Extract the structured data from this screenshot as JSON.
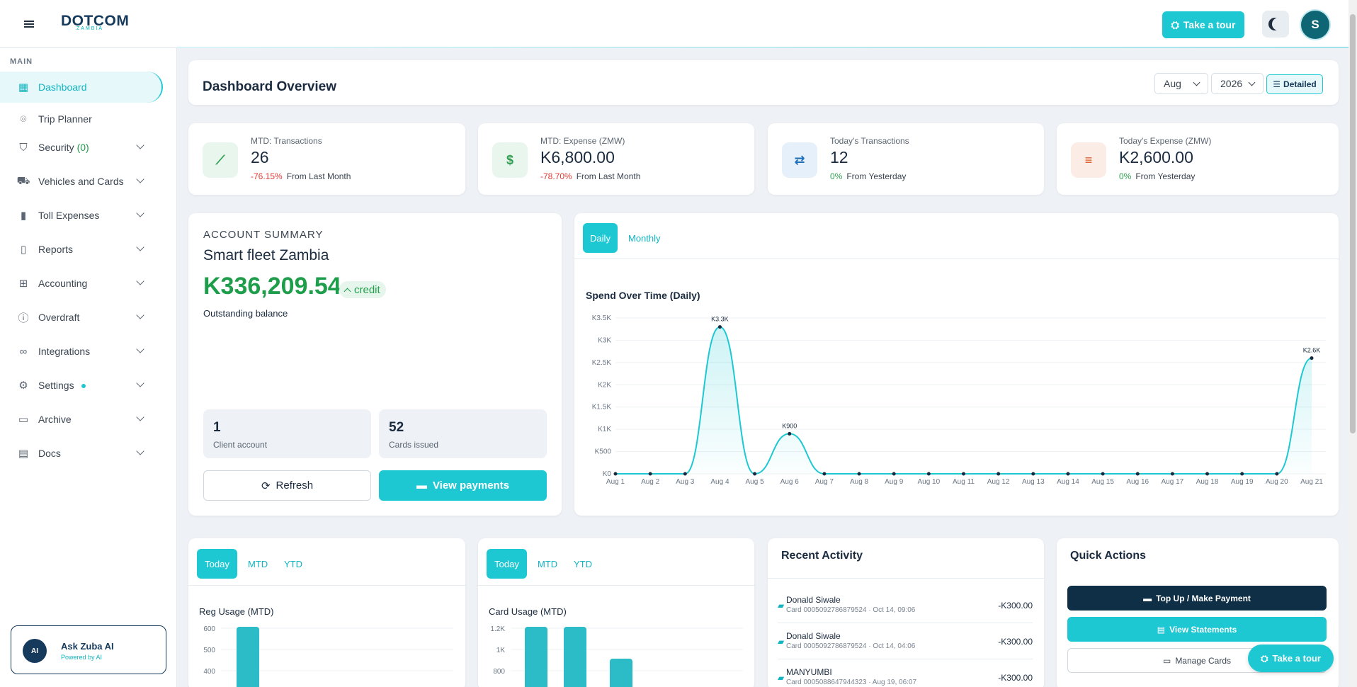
{
  "brand": {
    "name": "DOTCOM",
    "sub": "ZAMBIA"
  },
  "header": {
    "tour_label": "Take a tour",
    "avatar_initial": "S"
  },
  "sidebar": {
    "section": "MAIN",
    "items": [
      {
        "label": "Dashboard",
        "icon": "dashboard-icon",
        "active": true
      },
      {
        "label": "Trip Planner",
        "icon": "map-pin-icon"
      },
      {
        "label": "Security",
        "badge": "(0)",
        "icon": "shield-icon"
      },
      {
        "label": "Vehicles and Cards",
        "icon": "truck-icon"
      },
      {
        "label": "Toll Expenses",
        "icon": "bar-chart-icon"
      },
      {
        "label": "Reports",
        "icon": "clipboard-icon"
      },
      {
        "label": "Accounting",
        "icon": "book-icon"
      },
      {
        "label": "Overdraft",
        "icon": "alert-circle-icon"
      },
      {
        "label": "Integrations",
        "icon": "link-icon"
      },
      {
        "label": "Settings",
        "icon": "gear-icon"
      },
      {
        "label": "Archive",
        "icon": "archive-icon"
      },
      {
        "label": "Docs",
        "icon": "document-icon"
      }
    ],
    "zuba": {
      "title": "Ask Zuba AI",
      "subtitle": "Powered by AI",
      "badge": "AI"
    }
  },
  "overview": {
    "title": "Dashboard Overview",
    "month": "Aug",
    "year": "2026",
    "detailed_label": "Detailed"
  },
  "stats": [
    {
      "label": "MTD: Transactions",
      "value": "26",
      "change": "-76.15%",
      "change_note": "From Last Month",
      "icon": "trend-icon",
      "icon_glyph": "⟋",
      "color": "#2e9e4f"
    },
    {
      "label": "MTD: Expense (ZMW)",
      "value": "K6,800.00",
      "change": "-78.70%",
      "change_note": "From Last Month",
      "icon": "dollar-icon",
      "icon_glyph": "$",
      "color": "#2e9e4f"
    },
    {
      "label": "Today's Transactions",
      "value": "12",
      "change": "0%",
      "change_note": "From Yesterday",
      "icon": "swap-icon",
      "icon_glyph": "⇄",
      "color": "#1f6fb8"
    },
    {
      "label": "Today's Expense (ZMW)",
      "value": "K2,600.00",
      "change": "0%",
      "change_note": "From Yesterday",
      "icon": "coins-icon",
      "icon_glyph": "≡",
      "color": "#d9531e"
    }
  ],
  "account": {
    "heading": "ACCOUNT SUMMARY",
    "name": "Smart fleet Zambia",
    "balance": "K336,209.54",
    "balance_tag": "credit",
    "balance_label": "Outstanding balance",
    "client_accounts": "1",
    "client_accounts_label": "Client account",
    "cards_issued": "52",
    "cards_issued_label": "Cards issued",
    "refresh_label": "Refresh",
    "payments_label": "View payments"
  },
  "spend_panel": {
    "tabs": [
      "Daily",
      "Monthly"
    ],
    "active_tab": "Daily"
  },
  "reg_panel": {
    "tabs": [
      "Today",
      "MTD",
      "YTD"
    ],
    "title": "Reg Usage (MTD)"
  },
  "card_panel": {
    "tabs": [
      "Today",
      "MTD",
      "YTD"
    ],
    "title": "Card Usage (MTD)"
  },
  "chart_data": [
    {
      "type": "line",
      "title": "Spend Over Time (Daily)",
      "x": [
        "Aug 1",
        "Aug 2",
        "Aug 3",
        "Aug 4",
        "Aug 5",
        "Aug 6",
        "Aug 7",
        "Aug 8",
        "Aug 9",
        "Aug 10",
        "Aug 11",
        "Aug 12",
        "Aug 13",
        "Aug 14",
        "Aug 15",
        "Aug 16",
        "Aug 17",
        "Aug 18",
        "Aug 19",
        "Aug 20",
        "Aug 21"
      ],
      "values": [
        0,
        0,
        0,
        3300,
        0,
        900,
        0,
        0,
        0,
        0,
        0,
        0,
        0,
        0,
        0,
        0,
        0,
        0,
        0,
        0,
        2600
      ],
      "data_labels": {
        "3": "K3.3K",
        "5": "K900",
        "20": "K2.6K"
      },
      "yticks": [
        {
          "v": 0,
          "label": "K0"
        },
        {
          "v": 500,
          "label": "K500"
        },
        {
          "v": 1000,
          "label": "K1K"
        },
        {
          "v": 1500,
          "label": "K1.5K"
        },
        {
          "v": 2000,
          "label": "K2K"
        },
        {
          "v": 2500,
          "label": "K2.5K"
        },
        {
          "v": 3000,
          "label": "K3K"
        },
        {
          "v": 3500,
          "label": "K3.5K"
        }
      ],
      "ylim": [
        0,
        3500
      ],
      "grid": true,
      "color": "#1ec8d2"
    },
    {
      "type": "bar",
      "title": "Reg Usage (MTD)",
      "yticks": [
        400,
        500,
        600
      ],
      "ylim_visible": [
        400,
        600
      ],
      "values": [
        600
      ],
      "color": "#2bbcc8"
    },
    {
      "type": "bar",
      "title": "Card Usage (MTD)",
      "yticks": [
        {
          "v": 800,
          "label": "800"
        },
        {
          "v": 1000,
          "label": "1K"
        },
        {
          "v": 1200,
          "label": "1.2K"
        }
      ],
      "ylim_visible": [
        800,
        1200
      ],
      "values": [
        1200,
        1200,
        900
      ],
      "color": "#2bbcc8"
    }
  ],
  "recent_activity": {
    "title": "Recent Activity",
    "items": [
      {
        "name": "Donald Siwale",
        "meta": "Card 0005092786879524 · Oct 14, 09:06",
        "amount": "-K300.00"
      },
      {
        "name": "Donald Siwale",
        "meta": "Card 0005092786879524 · Oct 14, 04:06",
        "amount": "-K300.00"
      },
      {
        "name": "MANYUMBI",
        "meta": "Card 0005088647944323 · Aug 19, 06:07",
        "amount": "-K300.00"
      }
    ]
  },
  "quick_actions": {
    "title": "Quick Actions",
    "buttons": [
      "Top Up / Make Payment",
      "View Statements",
      "Manage Cards"
    ]
  },
  "float_tour_label": "Take a tour"
}
